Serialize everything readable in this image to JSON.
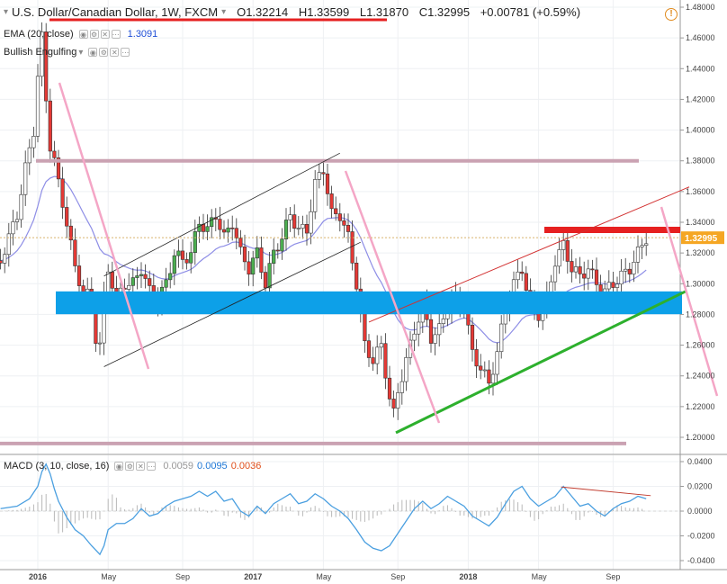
{
  "header": {
    "symbol": "U.S. Dollar/Canadian Dollar, 1W, FXCM",
    "open": "O1.32214",
    "high": "H1.33599",
    "low": "L1.31870",
    "close": "C1.32995",
    "change": "+0.00781 (+0.59%)",
    "chevron": "▾"
  },
  "indicators": {
    "ema_label": "EMA (20, close)",
    "ema_value": "1.3091",
    "engulfing_label": "Bullish Engulfing",
    "macd_label": "MACD (3, 10, close, 16)",
    "macd_values": [
      "0.0059",
      "0.0095",
      "0.0036"
    ]
  },
  "icons": [
    "chevron-down-icon",
    "eye-icon",
    "settings-icon",
    "close-icon",
    "more-icon",
    "alert-icon"
  ],
  "colors": {
    "bull": "#4caf50",
    "bear": "#e53935",
    "ema": "#8e8ee6",
    "macd": "#4a9fe0",
    "trend_pink": "#f4a6c6",
    "zone_blue": "#0da0e8",
    "resist_red": "#e62020",
    "support_green": "#2db02d",
    "level_mauve": "#caa2b2",
    "price_tag": "#f5a623"
  },
  "chart_data": [
    {
      "type": "candlestick",
      "title": "U.S. Dollar/Canadian Dollar, 1W, FXCM",
      "current_price": 1.32995,
      "current_price_label": "1.32995",
      "y_ticks": [
        "1.48000",
        "1.46000",
        "1.44000",
        "1.42000",
        "1.40000",
        "1.38000",
        "1.36000",
        "1.34000",
        "1.32000",
        "1.30000",
        "1.28000",
        "1.26000",
        "1.24000",
        "1.22000",
        "1.20000"
      ],
      "ylim": [
        1.195,
        1.481
      ],
      "x_ticks": [
        {
          "label": "2016",
          "week": 0
        },
        {
          "label": "May",
          "week": 17
        },
        {
          "label": "Sep",
          "week": 35
        },
        {
          "label": "2017",
          "week": 52
        },
        {
          "label": "May",
          "week": 69
        },
        {
          "label": "Sep",
          "week": 87
        },
        {
          "label": "2018",
          "week": 104
        },
        {
          "label": "May",
          "week": 121
        },
        {
          "label": "Sep",
          "week": 139
        }
      ],
      "close_path": [
        [
          -9,
          1.315
        ],
        [
          -7,
          1.33
        ],
        [
          -5,
          1.345
        ],
        [
          -3,
          1.375
        ],
        [
          -1,
          1.4
        ],
        [
          0,
          1.435
        ],
        [
          1,
          1.46
        ],
        [
          2,
          1.42
        ],
        [
          3,
          1.39
        ],
        [
          4,
          1.38
        ],
        [
          5,
          1.365
        ],
        [
          7,
          1.34
        ],
        [
          9,
          1.31
        ],
        [
          11,
          1.295
        ],
        [
          13,
          1.29
        ],
        [
          14,
          1.265
        ],
        [
          15,
          1.26
        ],
        [
          16,
          1.29
        ],
        [
          17,
          1.31
        ],
        [
          19,
          1.29
        ],
        [
          21,
          1.3
        ],
        [
          23,
          1.3
        ],
        [
          25,
          1.31
        ],
        [
          27,
          1.295
        ],
        [
          29,
          1.29
        ],
        [
          31,
          1.3
        ],
        [
          33,
          1.32
        ],
        [
          35,
          1.315
        ],
        [
          37,
          1.32
        ],
        [
          39,
          1.34
        ],
        [
          41,
          1.335
        ],
        [
          43,
          1.345
        ],
        [
          45,
          1.33
        ],
        [
          47,
          1.34
        ],
        [
          49,
          1.32
        ],
        [
          51,
          1.31
        ],
        [
          53,
          1.32
        ],
        [
          55,
          1.3
        ],
        [
          57,
          1.32
        ],
        [
          59,
          1.33
        ],
        [
          61,
          1.345
        ],
        [
          63,
          1.335
        ],
        [
          65,
          1.335
        ],
        [
          67,
          1.365
        ],
        [
          69,
          1.375
        ],
        [
          71,
          1.345
        ],
        [
          73,
          1.345
        ],
        [
          75,
          1.33
        ],
        [
          77,
          1.3
        ],
        [
          79,
          1.26
        ],
        [
          81,
          1.25
        ],
        [
          83,
          1.26
        ],
        [
          85,
          1.225
        ],
        [
          86,
          1.215
        ],
        [
          87,
          1.23
        ],
        [
          89,
          1.25
        ],
        [
          91,
          1.27
        ],
        [
          93,
          1.285
        ],
        [
          95,
          1.265
        ],
        [
          97,
          1.27
        ],
        [
          99,
          1.285
        ],
        [
          101,
          1.29
        ],
        [
          103,
          1.285
        ],
        [
          105,
          1.255
        ],
        [
          107,
          1.245
        ],
        [
          109,
          1.235
        ],
        [
          111,
          1.255
        ],
        [
          113,
          1.285
        ],
        [
          115,
          1.3
        ],
        [
          117,
          1.31
        ],
        [
          119,
          1.285
        ],
        [
          121,
          1.28
        ],
        [
          123,
          1.29
        ],
        [
          125,
          1.315
        ],
        [
          127,
          1.325
        ],
        [
          129,
          1.31
        ],
        [
          131,
          1.305
        ],
        [
          133,
          1.31
        ],
        [
          135,
          1.3
        ],
        [
          137,
          1.295
        ],
        [
          139,
          1.3
        ],
        [
          141,
          1.305
        ],
        [
          143,
          1.31
        ],
        [
          145,
          1.32
        ],
        [
          147,
          1.33
        ]
      ],
      "ema_series": {
        "name": "EMA (20, close)",
        "last": 1.3091
      },
      "drawings": [
        {
          "kind": "horizontal_level",
          "price": 1.38,
          "color": "level_mauve"
        },
        {
          "kind": "horizontal_level",
          "price": 1.196,
          "color": "level_mauve"
        },
        {
          "kind": "zone",
          "from": 1.286,
          "to": 1.295,
          "color": "zone_blue"
        },
        {
          "kind": "resistance",
          "price": 1.335,
          "color": "resist_red"
        },
        {
          "kind": "rising_channel",
          "from_week": 16,
          "to_week": 75
        },
        {
          "kind": "rising_channel",
          "from_week": 80,
          "to_week": 150
        },
        {
          "kind": "support_trendline",
          "from_week": 86,
          "to_week": 150,
          "color": "support_green"
        }
      ]
    },
    {
      "type": "line",
      "title": "MACD (3, 10, close, 16)",
      "y_ticks": [
        "0.0400",
        "0.0200",
        "0.0000",
        "-0.0200",
        "-0.0400"
      ],
      "ylim": [
        -0.042,
        0.042
      ],
      "series": [
        {
          "name": "MACD",
          "values": [
            [
              -9,
              0.002
            ],
            [
              -5,
              0.004
            ],
            [
              -2,
              0.01
            ],
            [
              0,
              0.02
            ],
            [
              1,
              0.032
            ],
            [
              2,
              0.038
            ],
            [
              3,
              0.03
            ],
            [
              4,
              0.018
            ],
            [
              5,
              0.008
            ],
            [
              7,
              -0.005
            ],
            [
              9,
              -0.015
            ],
            [
              11,
              -0.02
            ],
            [
              13,
              -0.028
            ],
            [
              15,
              -0.035
            ],
            [
              16,
              -0.028
            ],
            [
              17,
              -0.015
            ],
            [
              19,
              -0.01
            ],
            [
              21,
              -0.01
            ],
            [
              23,
              -0.006
            ],
            [
              25,
              0.002
            ],
            [
              27,
              -0.004
            ],
            [
              29,
              -0.002
            ],
            [
              31,
              0.004
            ],
            [
              33,
              0.008
            ],
            [
              35,
              0.01
            ],
            [
              37,
              0.012
            ],
            [
              39,
              0.016
            ],
            [
              41,
              0.012
            ],
            [
              43,
              0.016
            ],
            [
              45,
              0.008
            ],
            [
              47,
              0.01
            ],
            [
              49,
              0.0
            ],
            [
              51,
              -0.004
            ],
            [
              53,
              0.004
            ],
            [
              55,
              -0.002
            ],
            [
              57,
              0.006
            ],
            [
              59,
              0.01
            ],
            [
              61,
              0.014
            ],
            [
              63,
              0.006
            ],
            [
              65,
              0.008
            ],
            [
              67,
              0.014
            ],
            [
              69,
              0.01
            ],
            [
              71,
              0.004
            ],
            [
              73,
              0.0
            ],
            [
              75,
              -0.006
            ],
            [
              77,
              -0.015
            ],
            [
              79,
              -0.025
            ],
            [
              81,
              -0.03
            ],
            [
              83,
              -0.032
            ],
            [
              85,
              -0.028
            ],
            [
              87,
              -0.018
            ],
            [
              89,
              -0.008
            ],
            [
              91,
              0.002
            ],
            [
              93,
              0.008
            ],
            [
              95,
              0.002
            ],
            [
              97,
              0.006
            ],
            [
              99,
              0.012
            ],
            [
              101,
              0.008
            ],
            [
              103,
              0.004
            ],
            [
              105,
              -0.004
            ],
            [
              107,
              -0.008
            ],
            [
              109,
              -0.012
            ],
            [
              111,
              -0.005
            ],
            [
              113,
              0.006
            ],
            [
              115,
              0.016
            ],
            [
              117,
              0.02
            ],
            [
              119,
              0.01
            ],
            [
              121,
              0.004
            ],
            [
              123,
              0.008
            ],
            [
              125,
              0.012
            ],
            [
              127,
              0.02
            ],
            [
              129,
              0.012
            ],
            [
              131,
              0.004
            ],
            [
              133,
              0.006
            ],
            [
              135,
              0.0
            ],
            [
              137,
              -0.004
            ],
            [
              139,
              0.002
            ],
            [
              141,
              0.006
            ],
            [
              143,
              0.008
            ],
            [
              145,
              0.012
            ],
            [
              147,
              0.01
            ]
          ]
        }
      ],
      "divergence_line": {
        "from_week": 126,
        "to_week": 147
      }
    }
  ]
}
